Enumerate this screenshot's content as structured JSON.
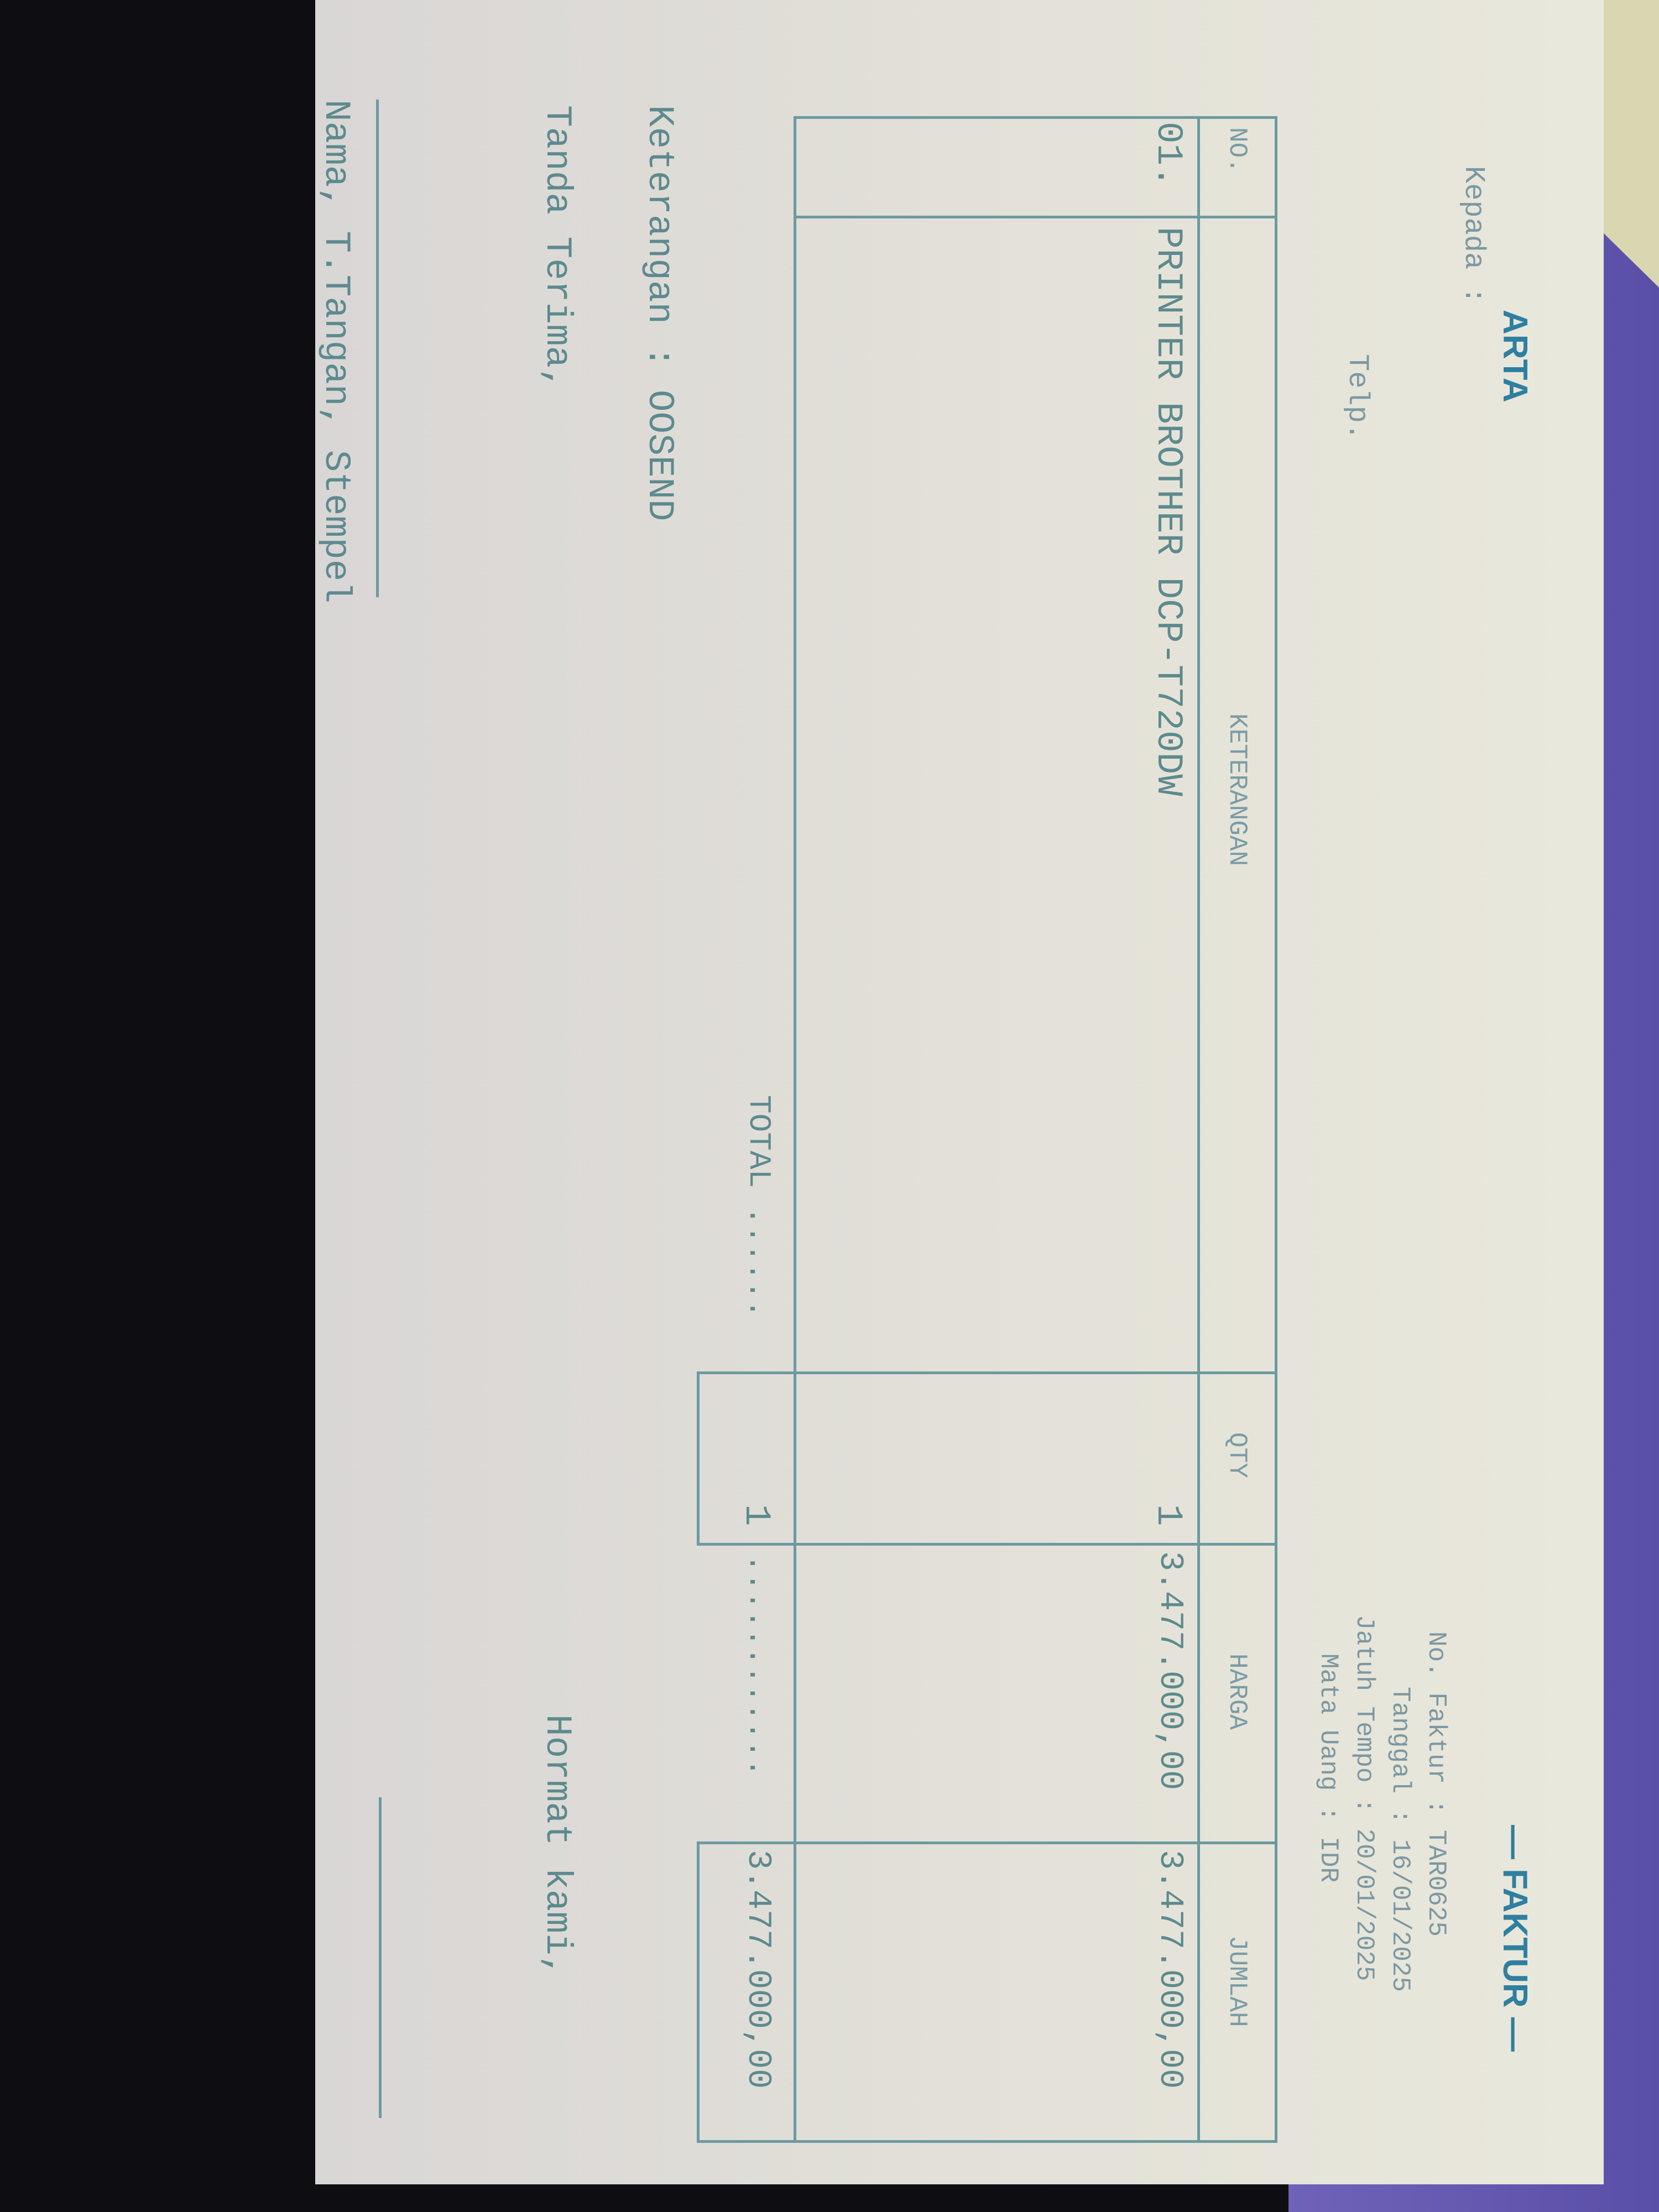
{
  "header": {
    "company_fragment": "ARTA",
    "to_label": "Kepada :",
    "phone_label": "Telp.",
    "title": "— FAKTUR —",
    "invoice_no": "No. Faktur : TAR0625",
    "date": "Tanggal : 16/01/2025",
    "due_date": "Jatuh Tempo : 20/01/2025",
    "currency": "Mata Uang : IDR"
  },
  "table": {
    "columns": [
      "NO.",
      "KETERANGAN",
      "QTY",
      "HARGA",
      "JUMLAH"
    ],
    "rows": [
      {
        "no": "01.",
        "description": "PRINTER BROTHER DCP-T720DW",
        "qty": "1",
        "price": "3.477.000,00",
        "amount": "3.477.000,00"
      }
    ],
    "total_label": "TOTAL ......",
    "total_qty": "1",
    "total_dots": "............",
    "total_amount": "3.477.000,00"
  },
  "footer": {
    "note": "Keterangan : OOSEND",
    "received_by": "Tanda Terima,",
    "signature_hint": "Nama, T.Tangan, Stempel",
    "regards": "Hormat kami,"
  },
  "colors": {
    "ink": "#5d8a8e",
    "title_ink": "#2f7fa0",
    "paper": "#e6e4da",
    "background_right": "#6f62b8"
  }
}
